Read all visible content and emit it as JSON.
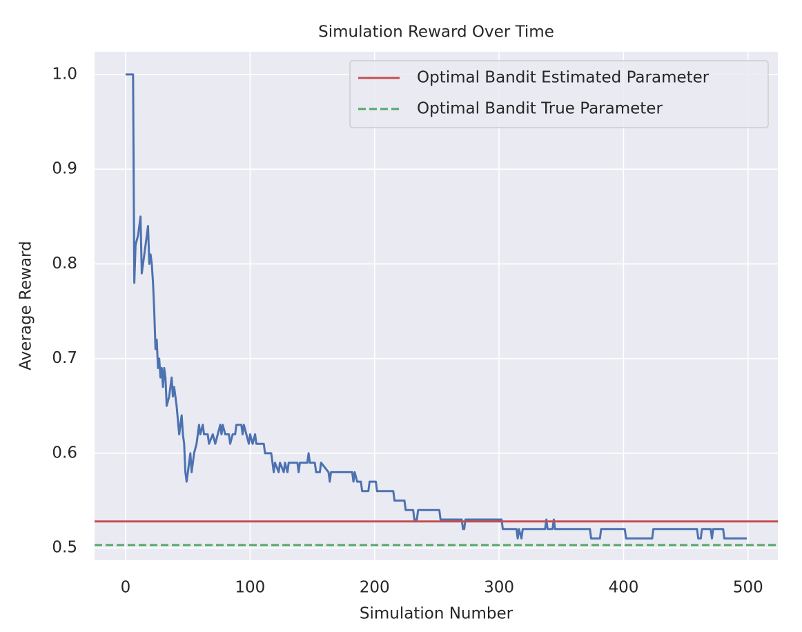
{
  "chart_data": {
    "type": "line",
    "title": "Simulation Reward Over Time",
    "xlabel": "Simulation Number",
    "ylabel": "Average Reward",
    "x": [
      0,
      6,
      7,
      8,
      10,
      12,
      13,
      15,
      17,
      18,
      19,
      20,
      21,
      22,
      23,
      24,
      25,
      26,
      27,
      28,
      29,
      30,
      31,
      32,
      33,
      35,
      37,
      38,
      39,
      41,
      43,
      45,
      46,
      47,
      48,
      49,
      51,
      52,
      53,
      55,
      57,
      59,
      60,
      62,
      63,
      66,
      67,
      70,
      72,
      74,
      76,
      77,
      78,
      80,
      83,
      84,
      86,
      88,
      89,
      93,
      94,
      95,
      97,
      99,
      100,
      102,
      104,
      105,
      111,
      112,
      117,
      118,
      119,
      120,
      123,
      124,
      127,
      128,
      130,
      131,
      138,
      139,
      140,
      146,
      147,
      148,
      152,
      153,
      156,
      157,
      163,
      164,
      165,
      182,
      183,
      184,
      186,
      189,
      190,
      195,
      196,
      201,
      202,
      215,
      216,
      224,
      225,
      231,
      232,
      234,
      235,
      252,
      253,
      270,
      271,
      272,
      273,
      302,
      303,
      314,
      315,
      316,
      318,
      319,
      337,
      338,
      339,
      343,
      344,
      345,
      373,
      374,
      381,
      382,
      401,
      402,
      423,
      424,
      459,
      460,
      462,
      463,
      470,
      471,
      472,
      480,
      481,
      499
    ],
    "series": [
      {
        "color": "#4c72b0",
        "values": [
          1.0,
          1.0,
          0.78,
          0.82,
          0.83,
          0.85,
          0.79,
          0.81,
          0.83,
          0.84,
          0.8,
          0.81,
          0.8,
          0.78,
          0.75,
          0.71,
          0.72,
          0.69,
          0.7,
          0.68,
          0.69,
          0.67,
          0.69,
          0.68,
          0.65,
          0.66,
          0.68,
          0.66,
          0.67,
          0.65,
          0.62,
          0.64,
          0.62,
          0.61,
          0.58,
          0.57,
          0.59,
          0.6,
          0.58,
          0.6,
          0.61,
          0.63,
          0.62,
          0.63,
          0.62,
          0.62,
          0.61,
          0.62,
          0.61,
          0.62,
          0.63,
          0.62,
          0.63,
          0.62,
          0.62,
          0.61,
          0.62,
          0.62,
          0.63,
          0.63,
          0.62,
          0.63,
          0.62,
          0.61,
          0.62,
          0.61,
          0.62,
          0.61,
          0.61,
          0.6,
          0.6,
          0.59,
          0.58,
          0.59,
          0.58,
          0.59,
          0.58,
          0.59,
          0.58,
          0.59,
          0.59,
          0.58,
          0.59,
          0.59,
          0.6,
          0.59,
          0.59,
          0.58,
          0.58,
          0.59,
          0.58,
          0.57,
          0.58,
          0.58,
          0.57,
          0.58,
          0.57,
          0.57,
          0.56,
          0.56,
          0.57,
          0.57,
          0.56,
          0.56,
          0.55,
          0.55,
          0.54,
          0.54,
          0.53,
          0.53,
          0.54,
          0.54,
          0.53,
          0.53,
          0.52,
          0.52,
          0.53,
          0.53,
          0.52,
          0.52,
          0.51,
          0.52,
          0.51,
          0.52,
          0.52,
          0.53,
          0.52,
          0.52,
          0.53,
          0.52,
          0.52,
          0.51,
          0.51,
          0.52,
          0.52,
          0.51,
          0.51,
          0.52,
          0.52,
          0.51,
          0.51,
          0.52,
          0.52,
          0.51,
          0.52,
          0.52,
          0.51,
          0.51
        ]
      }
    ],
    "hlines": [
      {
        "name": "Optimal Bandit Estimated Parameter",
        "color": "#c44e52",
        "value": 0.528,
        "style": "solid"
      },
      {
        "name": "Optimal Bandit True Parameter",
        "color": "#55a868",
        "value": 0.503,
        "style": "dashed"
      }
    ],
    "xlim": [
      -24.95,
      523.95
    ],
    "xticks": [
      0,
      100,
      200,
      300,
      400,
      500
    ],
    "ylim": [
      0.487,
      1.024
    ],
    "yticks": [
      {
        "value": 0.5,
        "label": "0.5"
      },
      {
        "value": 0.6,
        "label": "0.6"
      },
      {
        "value": 0.7,
        "label": "0.7"
      },
      {
        "value": 0.8,
        "label": "0.8"
      },
      {
        "value": 0.9,
        "label": "0.9"
      },
      {
        "value": 1.0,
        "label": "1.0"
      }
    ],
    "grid": true,
    "legend": "upper right"
  }
}
